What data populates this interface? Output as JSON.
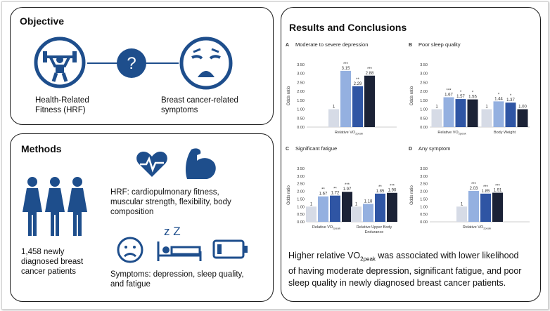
{
  "objective": {
    "title": "Objective",
    "left_label_line1": "Health-Related",
    "left_label_line2": "Fitness (HRF)",
    "question": "?",
    "right_label_line1": "Breast cancer-related",
    "right_label_line2": "symptoms"
  },
  "methods": {
    "title": "Methods",
    "patients_line1": "1,458 newly",
    "patients_line2": "diagnosed breast",
    "patients_line3": "cancer patients",
    "hrf_line1": "HRF: cardiopulmonary fitness,",
    "hrf_line2": "muscular strength, flexibility, body",
    "hrf_line3": "composition",
    "symptoms_line1": "Symptoms: depression, sleep quality,",
    "symptoms_line2": "and fatigue",
    "sleep_text": "z Z"
  },
  "results": {
    "title": "Results and Conclusions",
    "summary_pre": "Higher relative VO",
    "summary_sub": "2peak",
    "summary_post": " was associated with lower likelihood",
    "summary_line2": "of having moderate depression, significant fatigue, and poor",
    "summary_line3": "sleep quality in newly diagnosed breast cancer patients."
  },
  "colors": {
    "navy": "#1f3a66",
    "bar1": "#d6dbe6",
    "bar2": "#94b0e0",
    "bar3": "#2f55a4",
    "bar4": "#1b2236",
    "icon": "#1e4e8c"
  },
  "chart_data": [
    {
      "type": "bar",
      "panel_letter": "A",
      "title": "Moderate to severe depression",
      "ylabel": "Odds ratio",
      "ylim": [
        0,
        3.5
      ],
      "yticks": [
        "0.00",
        "0.50",
        "1.00",
        "1.50",
        "2.00",
        "2.50",
        "3.00",
        "3.50"
      ],
      "groups": [
        {
          "label": "Relative VO",
          "label_sub": "2peak",
          "values": [
            1,
            3.15,
            2.29,
            2.88
          ],
          "labels": [
            "1",
            "3.15",
            "2.29",
            "2.88"
          ],
          "sig": [
            "",
            "***",
            "**",
            "***"
          ]
        }
      ]
    },
    {
      "type": "bar",
      "panel_letter": "B",
      "title": "Poor sleep quality",
      "ylabel": "Odds ratio",
      "ylim": [
        0,
        3.5
      ],
      "yticks": [
        "0.00",
        "0.50",
        "1.00",
        "1.50",
        "2.00",
        "2.50",
        "3.00",
        "3.50"
      ],
      "groups": [
        {
          "label": "Relative VO",
          "label_sub": "2peak",
          "values": [
            1,
            1.67,
            1.57,
            1.55
          ],
          "labels": [
            "1",
            "1.67",
            "1.57",
            "1.55"
          ],
          "sig": [
            "",
            "***",
            "*",
            "*"
          ]
        },
        {
          "label": "Body Weight",
          "label_sub": "",
          "values": [
            1,
            1.44,
            1.37,
            1.0
          ],
          "labels": [
            "1",
            "1.44",
            "1.37",
            "1.00"
          ],
          "sig": [
            "",
            "*",
            "*",
            ""
          ]
        }
      ]
    },
    {
      "type": "bar",
      "panel_letter": "C",
      "title": "Significant fatigue",
      "ylabel": "Odds ratio",
      "ylim": [
        0,
        3.5
      ],
      "yticks": [
        "0.00",
        "0.50",
        "1.00",
        "1.50",
        "2.00",
        "2.50",
        "3.00",
        "3.50"
      ],
      "groups": [
        {
          "label": "Relative VO",
          "label_sub": "2peak",
          "values": [
            1,
            1.67,
            1.72,
            1.97
          ],
          "labels": [
            "1",
            "1.67",
            "1.72",
            "1.97"
          ],
          "sig": [
            "",
            "**",
            "**",
            "***"
          ]
        },
        {
          "label": "Relative Upper Body",
          "label2": "Endurance",
          "label_sub": "",
          "values": [
            1,
            1.18,
            1.85,
            1.9
          ],
          "labels": [
            "1",
            "1.18",
            "1.85",
            "1.90"
          ],
          "sig": [
            "",
            "",
            "**",
            "***"
          ]
        }
      ]
    },
    {
      "type": "bar",
      "panel_letter": "D",
      "title": "Any symptom",
      "ylabel": "Odds ratio",
      "ylim": [
        0,
        3.5
      ],
      "yticks": [
        "0.00",
        "0.50",
        "1.00",
        "1.50",
        "2.00",
        "2.50",
        "3.00",
        "3.50"
      ],
      "groups": [
        {
          "label": "Relative VO",
          "label_sub": "2peak",
          "values": [
            1,
            2.03,
            1.85,
            1.91
          ],
          "labels": [
            "1",
            "2.03",
            "1.85",
            "1.91"
          ],
          "sig": [
            "",
            "***",
            "***",
            "***"
          ]
        }
      ]
    }
  ]
}
